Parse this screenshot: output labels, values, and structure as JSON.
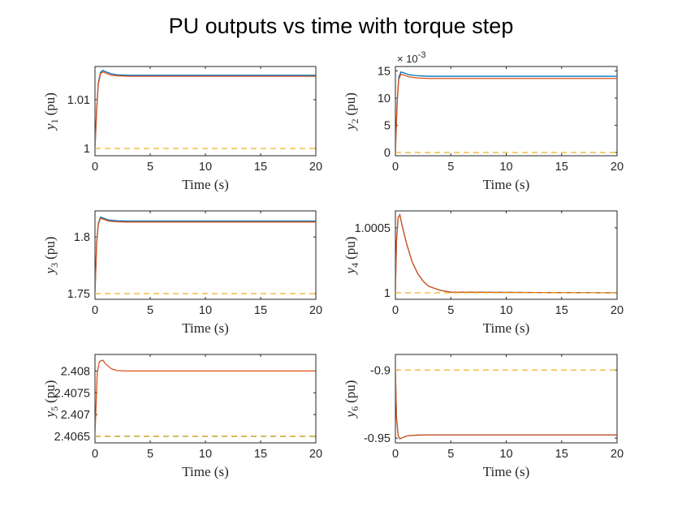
{
  "title": "PU outputs vs time with torque step",
  "colors": {
    "series1": "#0072BD",
    "series2": "#D95319",
    "reference": "#EDB120",
    "axes": "#262626"
  },
  "chart_data": [
    {
      "type": "line",
      "xlabel": "Time (s)",
      "ylabel_sym": "y",
      "ylabel_sub": "1",
      "ylabel_unit": "(pu)",
      "xlim": [
        0,
        20
      ],
      "ylim": [
        0.9985,
        1.0168
      ],
      "xticks": [
        0,
        5,
        10,
        15,
        20
      ],
      "xticklabels": [
        "0",
        "5",
        "10",
        "15",
        "20"
      ],
      "yticks": [
        1.0,
        1.01
      ],
      "yticklabels": [
        "1",
        "1.01"
      ],
      "exponent_label": "",
      "series": [
        {
          "color": "series1",
          "dash": false,
          "points": [
            [
              0,
              1.0
            ],
            [
              0.15,
              1.008
            ],
            [
              0.3,
              1.0135
            ],
            [
              0.5,
              1.0156
            ],
            [
              0.7,
              1.016
            ],
            [
              1,
              1.0157
            ],
            [
              1.5,
              1.0153
            ],
            [
              2,
              1.0151
            ],
            [
              3,
              1.015
            ],
            [
              5,
              1.015
            ],
            [
              20,
              1.015
            ]
          ]
        },
        {
          "color": "series2",
          "dash": false,
          "points": [
            [
              0,
              1.0
            ],
            [
              0.15,
              1.0078
            ],
            [
              0.3,
              1.0132
            ],
            [
              0.5,
              1.0153
            ],
            [
              0.7,
              1.0157
            ],
            [
              1,
              1.0154
            ],
            [
              1.5,
              1.015
            ],
            [
              2,
              1.0149
            ],
            [
              3,
              1.0148
            ],
            [
              5,
              1.0148
            ],
            [
              20,
              1.0148
            ]
          ]
        },
        {
          "color": "reference",
          "dash": true,
          "points": [
            [
              0,
              1.0
            ],
            [
              20,
              1.0
            ]
          ]
        }
      ]
    },
    {
      "type": "line",
      "xlabel": "Time (s)",
      "ylabel_sym": "y",
      "ylabel_sub": "2",
      "ylabel_unit": "(pu)",
      "xlim": [
        0,
        20
      ],
      "ylim": [
        -0.0006,
        0.0158
      ],
      "xticks": [
        0,
        5,
        10,
        15,
        20
      ],
      "xticklabels": [
        "0",
        "5",
        "10",
        "15",
        "20"
      ],
      "yticks": [
        0,
        0.005,
        0.01,
        0.015
      ],
      "yticklabels": [
        "0",
        "5",
        "10",
        "15"
      ],
      "exponent_label": "× 10",
      "exponent_power": "-3",
      "series": [
        {
          "color": "series1",
          "dash": false,
          "points": [
            [
              0,
              0.0
            ],
            [
              0.15,
              0.009
            ],
            [
              0.3,
              0.0138
            ],
            [
              0.5,
              0.0148
            ],
            [
              0.8,
              0.0146
            ],
            [
              1.2,
              0.0143
            ],
            [
              2,
              0.0141
            ],
            [
              3,
              0.014
            ],
            [
              20,
              0.014
            ]
          ]
        },
        {
          "color": "series2",
          "dash": false,
          "points": [
            [
              0,
              0.0
            ],
            [
              0.15,
              0.0087
            ],
            [
              0.3,
              0.0134
            ],
            [
              0.5,
              0.0144
            ],
            [
              0.8,
              0.0142
            ],
            [
              1.2,
              0.0139
            ],
            [
              2,
              0.0137
            ],
            [
              3,
              0.0136
            ],
            [
              20,
              0.0136
            ]
          ]
        },
        {
          "color": "reference",
          "dash": true,
          "points": [
            [
              0,
              0.0
            ],
            [
              20,
              0.0
            ]
          ]
        }
      ]
    },
    {
      "type": "line",
      "xlabel": "Time (s)",
      "ylabel_sym": "y",
      "ylabel_sub": "3",
      "ylabel_unit": "(pu)",
      "xlim": [
        0,
        20
      ],
      "ylim": [
        1.745,
        1.823
      ],
      "xticks": [
        0,
        5,
        10,
        15,
        20
      ],
      "xticklabels": [
        "0",
        "5",
        "10",
        "15",
        "20"
      ],
      "yticks": [
        1.75,
        1.8
      ],
      "yticklabels": [
        "1.75",
        "1.8"
      ],
      "exponent_label": "",
      "series": [
        {
          "color": "series1",
          "dash": false,
          "points": [
            [
              0,
              1.75
            ],
            [
              0.15,
              1.795
            ],
            [
              0.3,
              1.812
            ],
            [
              0.5,
              1.8175
            ],
            [
              0.8,
              1.8165
            ],
            [
              1.2,
              1.815
            ],
            [
              2,
              1.8143
            ],
            [
              3,
              1.814
            ],
            [
              20,
              1.814
            ]
          ]
        },
        {
          "color": "series2",
          "dash": false,
          "points": [
            [
              0,
              1.75
            ],
            [
              0.15,
              1.794
            ],
            [
              0.3,
              1.811
            ],
            [
              0.5,
              1.8165
            ],
            [
              0.8,
              1.8155
            ],
            [
              1.2,
              1.8141
            ],
            [
              2,
              1.8134
            ],
            [
              3,
              1.8131
            ],
            [
              20,
              1.8131
            ]
          ]
        },
        {
          "color": "reference",
          "dash": true,
          "points": [
            [
              0,
              1.75
            ],
            [
              20,
              1.75
            ]
          ]
        }
      ]
    },
    {
      "type": "line",
      "xlabel": "Time (s)",
      "ylabel_sym": "y",
      "ylabel_sub": "4",
      "ylabel_unit": "(pu)",
      "xlim": [
        0,
        20
      ],
      "ylim": [
        0.99995,
        1.00063
      ],
      "xticks": [
        0,
        5,
        10,
        15,
        20
      ],
      "xticklabels": [
        "0",
        "5",
        "10",
        "15",
        "20"
      ],
      "yticks": [
        1.0,
        1.0005
      ],
      "yticklabels": [
        "1",
        "1.0005"
      ],
      "exponent_label": "",
      "series": [
        {
          "color": "series1",
          "dash": false,
          "points": [
            [
              0,
              1.0
            ],
            [
              0.1,
              1.0004
            ],
            [
              0.25,
              1.00058
            ],
            [
              0.4,
              1.0006
            ],
            [
              0.6,
              1.00052
            ],
            [
              1,
              1.00038
            ],
            [
              1.5,
              1.00024
            ],
            [
              2,
              1.00015
            ],
            [
              2.5,
              1.00009
            ],
            [
              3,
              1.00005
            ],
            [
              4,
              1.00002
            ],
            [
              5,
              1.000005
            ],
            [
              20,
              1.0
            ]
          ]
        },
        {
          "color": "series2",
          "dash": false,
          "points": [
            [
              0,
              1.0
            ],
            [
              0.1,
              1.0004
            ],
            [
              0.25,
              1.00058
            ],
            [
              0.4,
              1.0006
            ],
            [
              0.6,
              1.00052
            ],
            [
              1,
              1.00038
            ],
            [
              1.5,
              1.00024
            ],
            [
              2,
              1.00015
            ],
            [
              2.5,
              1.00009
            ],
            [
              3,
              1.00005
            ],
            [
              4,
              1.00002
            ],
            [
              5,
              1.000005
            ],
            [
              20,
              1.0
            ]
          ]
        },
        {
          "color": "reference",
          "dash": true,
          "points": [
            [
              0,
              1.0
            ],
            [
              20,
              1.0
            ]
          ]
        }
      ]
    },
    {
      "type": "line",
      "xlabel": "Time (s)",
      "ylabel_sym": "y",
      "ylabel_sub": "5",
      "ylabel_unit": "(pu)",
      "xlim": [
        0,
        20
      ],
      "ylim": [
        2.40635,
        2.40838
      ],
      "xticks": [
        0,
        5,
        10,
        15,
        20
      ],
      "xticklabels": [
        "0",
        "5",
        "10",
        "15",
        "20"
      ],
      "yticks": [
        2.4065,
        2.407,
        2.4075,
        2.408
      ],
      "yticklabels": [
        "2.4065",
        "2.407",
        "2.4075",
        "2.408"
      ],
      "exponent_label": "",
      "series": [
        {
          "color": "series1",
          "dash": true,
          "points": [
            [
              0,
              2.4065
            ],
            [
              20,
              2.4065
            ]
          ]
        },
        {
          "color": "series2",
          "dash": false,
          "points": [
            [
              0,
              2.4065
            ],
            [
              0.2,
              2.40795
            ],
            [
              0.4,
              2.40822
            ],
            [
              0.7,
              2.40825
            ],
            [
              1,
              2.40815
            ],
            [
              1.5,
              2.40805
            ],
            [
              2,
              2.40801
            ],
            [
              3,
              2.408
            ],
            [
              20,
              2.408
            ]
          ]
        },
        {
          "color": "reference",
          "dash": true,
          "points": [
            [
              0,
              2.4065
            ],
            [
              20,
              2.4065
            ]
          ]
        }
      ]
    },
    {
      "type": "line",
      "xlabel": "Time (s)",
      "ylabel_sym": "y",
      "ylabel_sub": "6",
      "ylabel_unit": "(pu)",
      "xlim": [
        0,
        20
      ],
      "ylim": [
        -0.9535,
        -0.8885
      ],
      "xticks": [
        0,
        5,
        10,
        15,
        20
      ],
      "xticklabels": [
        "0",
        "5",
        "10",
        "15",
        "20"
      ],
      "yticks": [
        -0.95,
        -0.9
      ],
      "yticklabels": [
        "-0.95",
        "-0.9"
      ],
      "exponent_label": "",
      "series": [
        {
          "color": "series1",
          "dash": false,
          "points": [
            [
              0,
              -0.9
            ],
            [
              0.1,
              -0.935
            ],
            [
              0.25,
              -0.948
            ],
            [
              0.4,
              -0.9505
            ],
            [
              0.7,
              -0.9495
            ],
            [
              1,
              -0.9485
            ],
            [
              1.5,
              -0.948
            ],
            [
              2,
              -0.9478
            ],
            [
              3,
              -0.9477
            ],
            [
              20,
              -0.9477
            ]
          ]
        },
        {
          "color": "series2",
          "dash": false,
          "points": [
            [
              0,
              -0.9
            ],
            [
              0.1,
              -0.935
            ],
            [
              0.25,
              -0.948
            ],
            [
              0.4,
              -0.9505
            ],
            [
              0.7,
              -0.9495
            ],
            [
              1,
              -0.9485
            ],
            [
              1.5,
              -0.948
            ],
            [
              2,
              -0.9478
            ],
            [
              3,
              -0.9477
            ],
            [
              20,
              -0.9477
            ]
          ]
        },
        {
          "color": "reference",
          "dash": true,
          "points": [
            [
              0,
              -0.9
            ],
            [
              20,
              -0.9
            ]
          ]
        }
      ]
    }
  ]
}
